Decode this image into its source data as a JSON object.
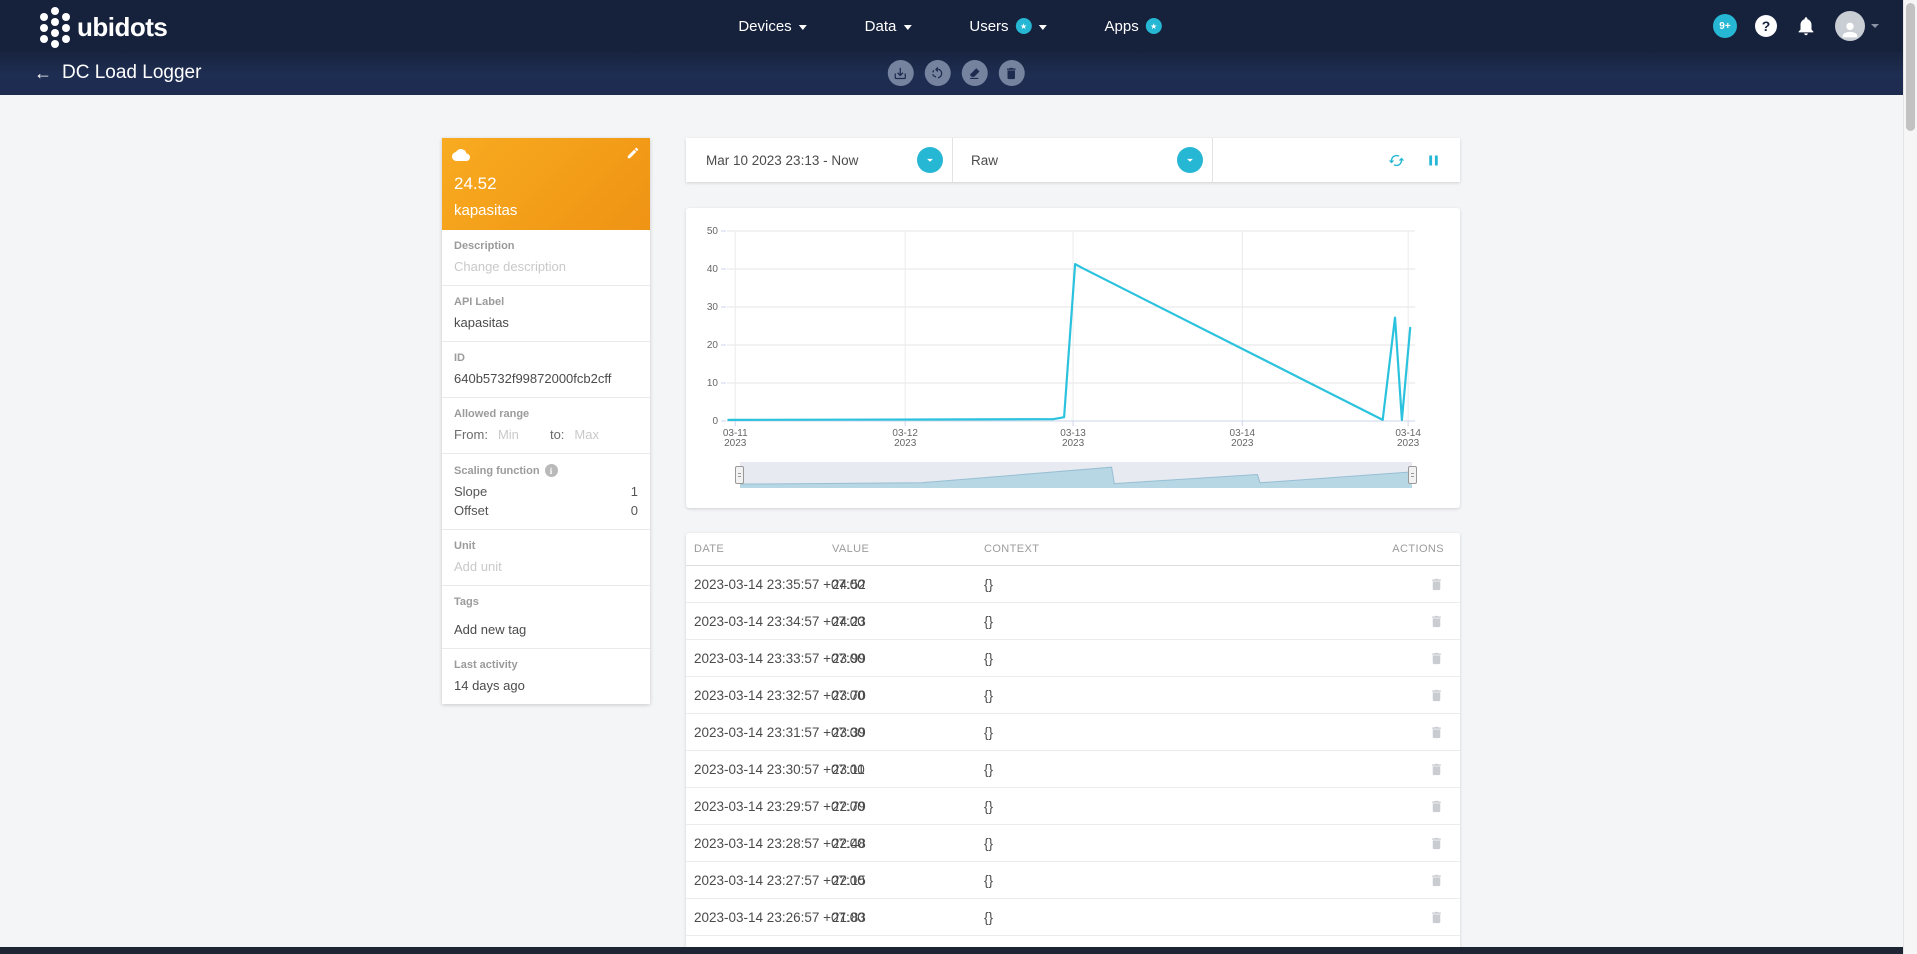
{
  "navbar": {
    "logo_text": "ubidots",
    "menus": [
      {
        "label": "Devices"
      },
      {
        "label": "Data"
      },
      {
        "label": "Users"
      },
      {
        "label": "Apps"
      }
    ],
    "badge_glyph": "★",
    "notifications_badge": "9+",
    "help_glyph": "?"
  },
  "subheader": {
    "back_glyph": "←",
    "title": "DC Load Logger"
  },
  "variable_card": {
    "value": "24.52",
    "name": "kapasitas",
    "description_label": "Description",
    "description_placeholder": "Change description",
    "api_label": "API Label",
    "api_value": "kapasitas",
    "id_label": "ID",
    "id_value": "640b5732f99872000fcb2cff",
    "range_label": "Allowed range",
    "from_label": "From:",
    "min_placeholder": "Min",
    "to_label": "to:",
    "max_placeholder": "Max",
    "scaling_label": "Scaling function",
    "info_glyph": "i",
    "slope_label": "Slope",
    "slope_value": "1",
    "offset_label": "Offset",
    "offset_value": "0",
    "unit_label": "Unit",
    "unit_placeholder": "Add unit",
    "tags_label": "Tags",
    "tags_placeholder": "Add new tag",
    "last_activity_label": "Last activity",
    "last_activity_value": "14 days ago"
  },
  "range_bar": {
    "date_range": "Mar 10 2023 23:13 - Now",
    "aggregation": "Raw"
  },
  "chart_data": {
    "type": "line",
    "ylim": [
      0,
      50
    ],
    "yticks": [
      0,
      10,
      20,
      30,
      40,
      50
    ],
    "xticks": [
      "03-11\n2023",
      "03-12\n2023",
      "03-13\n2023",
      "03-14\n2023",
      "03-14\n2023"
    ],
    "xtick_pos": [
      0.012,
      0.259,
      0.503,
      0.749,
      0.99
    ],
    "grid": true,
    "legend": "none",
    "series": [
      {
        "name": "kapasitas",
        "color": "#2bc2de",
        "points": [
          [
            0.002,
            0.3
          ],
          [
            0.3,
            0.4
          ],
          [
            0.475,
            0.5
          ],
          [
            0.49,
            1.0
          ],
          [
            0.506,
            41.3
          ],
          [
            0.517,
            40.2
          ],
          [
            0.953,
            0.3
          ],
          [
            0.971,
            27.2
          ],
          [
            0.981,
            0.3
          ],
          [
            0.993,
            24.5
          ]
        ]
      }
    ],
    "navigator": {
      "fill": "#b7d7e5",
      "stroke": "#97bfd2",
      "track": "#e7eaf1",
      "points": [
        [
          0,
          0.15
        ],
        [
          0.27,
          0.2
        ],
        [
          0.553,
          0.8
        ],
        [
          0.557,
          0.17
        ],
        [
          0.77,
          0.52
        ],
        [
          0.774,
          0.2
        ],
        [
          1,
          0.62
        ]
      ]
    }
  },
  "table": {
    "columns": [
      "DATE",
      "VALUE",
      "CONTEXT",
      "ACTIONS"
    ],
    "rows": [
      {
        "date": "2023-03-14 23:35:57 +07:00",
        "value": "24.52",
        "context": "{}"
      },
      {
        "date": "2023-03-14 23:34:57 +07:00",
        "value": "24.23",
        "context": "{}"
      },
      {
        "date": "2023-03-14 23:33:57 +07:00",
        "value": "23.99",
        "context": "{}"
      },
      {
        "date": "2023-03-14 23:32:57 +07:00",
        "value": "23.70",
        "context": "{}"
      },
      {
        "date": "2023-03-14 23:31:57 +07:00",
        "value": "23.39",
        "context": "{}"
      },
      {
        "date": "2023-03-14 23:30:57 +07:00",
        "value": "23.11",
        "context": "{}"
      },
      {
        "date": "2023-03-14 23:29:57 +07:00",
        "value": "22.79",
        "context": "{}"
      },
      {
        "date": "2023-03-14 23:28:57 +07:00",
        "value": "22.48",
        "context": "{}"
      },
      {
        "date": "2023-03-14 23:27:57 +07:00",
        "value": "22.15",
        "context": "{}"
      },
      {
        "date": "2023-03-14 23:26:57 +07:00",
        "value": "21.83",
        "context": "{}"
      }
    ]
  },
  "colors": {
    "accent_cyan": "#25b7d3",
    "brand_orange": "#f7a21b",
    "navbar_navy": "#16213c",
    "chart_line": "#2bc2de"
  }
}
